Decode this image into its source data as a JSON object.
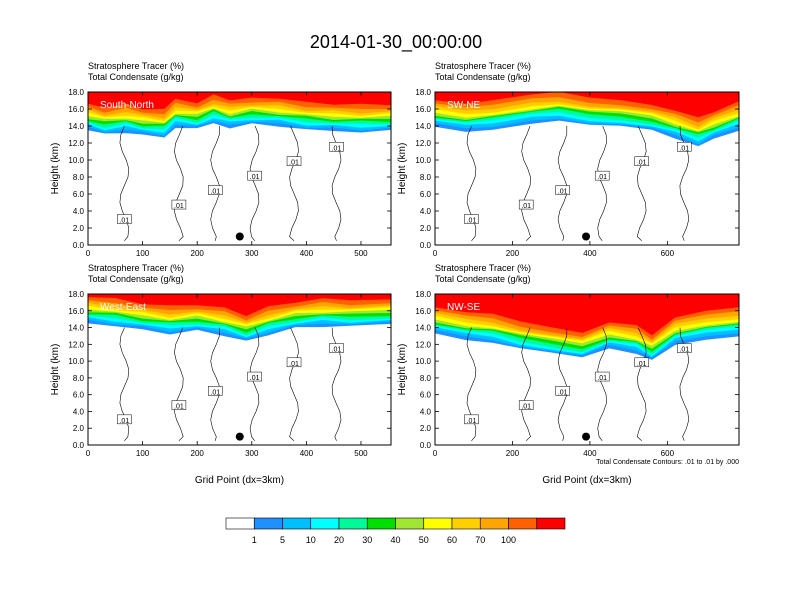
{
  "title": "2014-01-30_00:00:00",
  "field_labels": [
    "Stratosphere Tracer   (%)",
    "Total Condensate   (g/kg)"
  ],
  "ylabel": "Height (km)",
  "xlabel": "Grid Point (dx=3km)",
  "contour_note": "Total Condensate Contours: .01 to .01 by .000",
  "contour_label": ".01",
  "colorbar": {
    "levels": [
      "1",
      "5",
      "10",
      "20",
      "30",
      "40",
      "50",
      "60",
      "70",
      "100"
    ],
    "colors": [
      "#ffffff",
      "#1e90ff",
      "#00bfff",
      "#00ffff",
      "#00fa9a",
      "#00e000",
      "#a0e632",
      "#ffff00",
      "#ffd000",
      "#ffa500",
      "#ff6000",
      "#ff0000"
    ]
  },
  "chart_data": [
    {
      "type": "heatmap",
      "label": "South-North",
      "ylim": [
        0,
        18
      ],
      "xlim": [
        0,
        555
      ],
      "yticks": [
        "0.0",
        "2.0",
        "4.0",
        "6.0",
        "8.0",
        "10.0",
        "12.0",
        "14.0",
        "16.0",
        "18.0"
      ],
      "xticks": [
        0,
        100,
        200,
        300,
        400,
        500
      ],
      "xtick_labels": [
        "0",
        "100",
        "200",
        "300",
        "400",
        "500"
      ],
      "marker": {
        "x": 278,
        "y": 1.0
      },
      "profile": [
        [
          0,
          14.4
        ],
        [
          30,
          13.9
        ],
        [
          70,
          14.2
        ],
        [
          100,
          13.8
        ],
        [
          140,
          13.6
        ],
        [
          160,
          14.8
        ],
        [
          200,
          14.5
        ],
        [
          230,
          15.3
        ],
        [
          260,
          14.7
        ],
        [
          300,
          15.1
        ],
        [
          350,
          14.9
        ],
        [
          400,
          14.5
        ],
        [
          450,
          14.3
        ],
        [
          500,
          14.2
        ],
        [
          555,
          14.3
        ]
      ]
    },
    {
      "type": "heatmap",
      "label": "SW-NE",
      "ylim": [
        0,
        18
      ],
      "xlim": [
        0,
        785
      ],
      "yticks": [
        "0.0",
        "2.0",
        "4.0",
        "6.0",
        "8.0",
        "10.0",
        "12.0",
        "14.0",
        "16.0",
        "18.0"
      ],
      "xticks": [
        0,
        200,
        400,
        600
      ],
      "xtick_labels": [
        "0",
        "200",
        "400",
        "600"
      ],
      "marker": {
        "x": 390,
        "y": 1.0
      },
      "profile": [
        [
          0,
          14.8
        ],
        [
          80,
          14.3
        ],
        [
          150,
          14.6
        ],
        [
          250,
          15.3
        ],
        [
          320,
          15.6
        ],
        [
          400,
          15.0
        ],
        [
          480,
          14.8
        ],
        [
          560,
          14.3
        ],
        [
          620,
          13.5
        ],
        [
          680,
          12.6
        ],
        [
          720,
          13.4
        ],
        [
          785,
          14.5
        ]
      ]
    },
    {
      "type": "heatmap",
      "label": "West-East",
      "ylim": [
        0,
        18
      ],
      "xlim": [
        0,
        555
      ],
      "yticks": [
        "0.0",
        "2.0",
        "4.0",
        "6.0",
        "8.0",
        "10.0",
        "12.0",
        "14.0",
        "16.0",
        "18.0"
      ],
      "xticks": [
        0,
        100,
        200,
        300,
        400,
        500
      ],
      "xtick_labels": [
        "0",
        "100",
        "200",
        "300",
        "400",
        "500"
      ],
      "marker": {
        "x": 278,
        "y": 1.0
      },
      "profile": [
        [
          0,
          15.4
        ],
        [
          50,
          15.1
        ],
        [
          100,
          14.6
        ],
        [
          150,
          14.2
        ],
        [
          200,
          14.5
        ],
        [
          250,
          14.0
        ],
        [
          290,
          13.2
        ],
        [
          330,
          14.1
        ],
        [
          380,
          14.8
        ],
        [
          430,
          15.1
        ],
        [
          480,
          15.0
        ],
        [
          555,
          15.2
        ]
      ]
    },
    {
      "type": "heatmap",
      "label": "NW-SE",
      "ylim": [
        0,
        18
      ],
      "xlim": [
        0,
        785
      ],
      "yticks": [
        "0.0",
        "2.0",
        "4.0",
        "6.0",
        "8.0",
        "10.0",
        "12.0",
        "14.0",
        "16.0",
        "18.0"
      ],
      "xticks": [
        0,
        200,
        400,
        600
      ],
      "xtick_labels": [
        "0",
        "200",
        "400",
        "600"
      ],
      "marker": {
        "x": 390,
        "y": 1.0
      },
      "profile": [
        [
          0,
          14.2
        ],
        [
          80,
          13.5
        ],
        [
          150,
          13.2
        ],
        [
          220,
          12.4
        ],
        [
          300,
          11.8
        ],
        [
          380,
          11.2
        ],
        [
          450,
          12.4
        ],
        [
          520,
          11.9
        ],
        [
          560,
          10.9
        ],
        [
          620,
          12.9
        ],
        [
          700,
          13.6
        ],
        [
          785,
          14.0
        ]
      ]
    }
  ]
}
